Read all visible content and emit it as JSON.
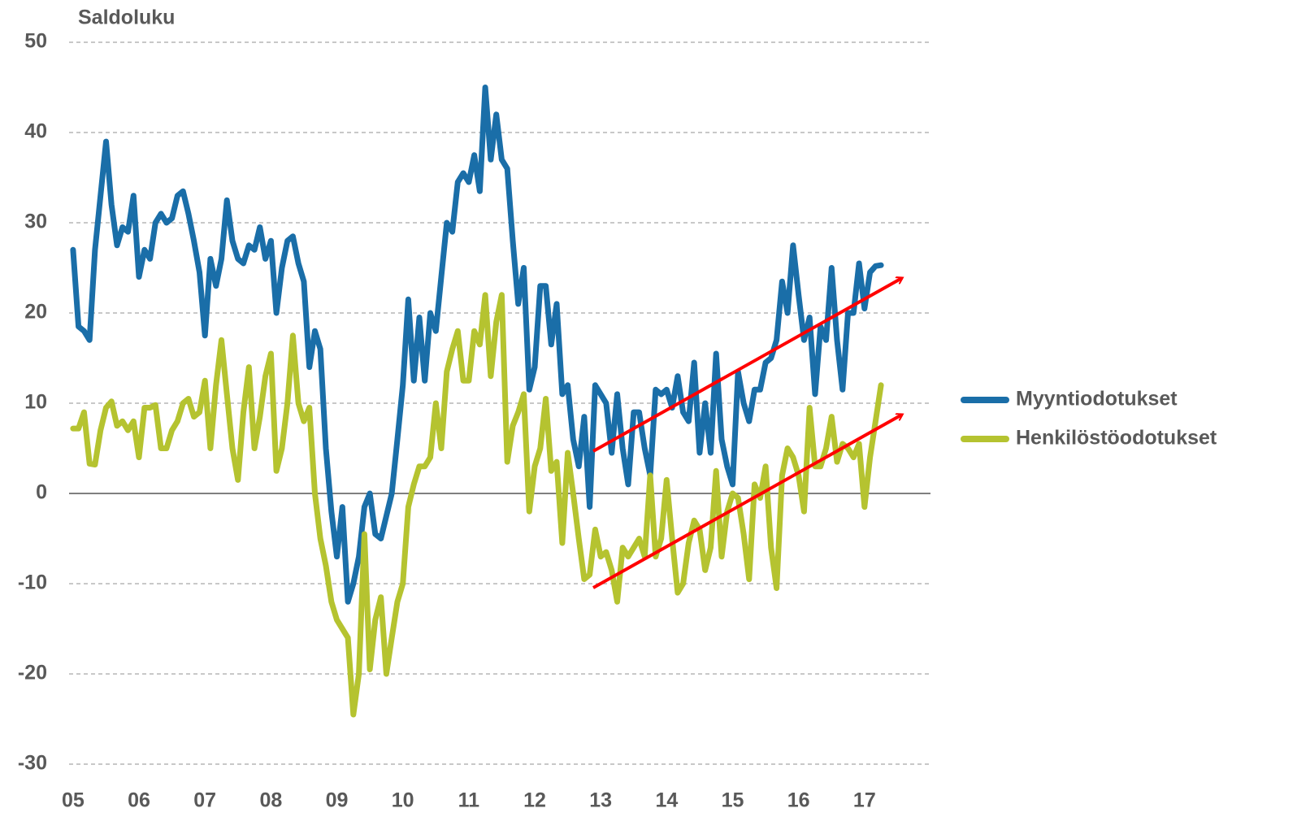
{
  "chart_data": {
    "type": "line",
    "title": "Saldoluku",
    "x": [
      2005,
      2005.083,
      2005.167,
      2005.25,
      2005.333,
      2005.417,
      2005.5,
      2005.583,
      2005.667,
      2005.75,
      2005.833,
      2005.917,
      2006,
      2006.083,
      2006.167,
      2006.25,
      2006.333,
      2006.417,
      2006.5,
      2006.583,
      2006.667,
      2006.75,
      2006.833,
      2006.917,
      2007,
      2007.083,
      2007.167,
      2007.25,
      2007.333,
      2007.417,
      2007.5,
      2007.583,
      2007.667,
      2007.75,
      2007.833,
      2007.917,
      2008,
      2008.083,
      2008.167,
      2008.25,
      2008.333,
      2008.417,
      2008.5,
      2008.583,
      2008.667,
      2008.75,
      2008.833,
      2008.917,
      2009,
      2009.083,
      2009.167,
      2009.25,
      2009.333,
      2009.417,
      2009.5,
      2009.583,
      2009.667,
      2009.75,
      2009.833,
      2009.917,
      2010,
      2010.083,
      2010.167,
      2010.25,
      2010.333,
      2010.417,
      2010.5,
      2010.583,
      2010.667,
      2010.75,
      2010.833,
      2010.917,
      2011,
      2011.083,
      2011.167,
      2011.25,
      2011.333,
      2011.417,
      2011.5,
      2011.583,
      2011.667,
      2011.75,
      2011.833,
      2011.917,
      2012,
      2012.083,
      2012.167,
      2012.25,
      2012.333,
      2012.417,
      2012.5,
      2012.583,
      2012.667,
      2012.75,
      2012.833,
      2012.917,
      2013,
      2013.083,
      2013.167,
      2013.25,
      2013.333,
      2013.417,
      2013.5,
      2013.583,
      2013.667,
      2013.75,
      2013.833,
      2013.917,
      2014,
      2014.083,
      2014.167,
      2014.25,
      2014.333,
      2014.417,
      2014.5,
      2014.583,
      2014.667,
      2014.75,
      2014.833,
      2014.917,
      2015,
      2015.083,
      2015.167,
      2015.25,
      2015.333,
      2015.417,
      2015.5,
      2015.583,
      2015.667,
      2015.75,
      2015.833,
      2015.917,
      2016,
      2016.083,
      2016.167,
      2016.25,
      2016.333,
      2016.417,
      2016.5,
      2016.583,
      2016.667,
      2016.75,
      2016.833,
      2016.917,
      2017,
      2017.083,
      2017.167,
      2017.25
    ],
    "series": [
      {
        "name": "Myyntiodotukset",
        "color": "#1a6ea8",
        "values": [
          27,
          18.5,
          18,
          17,
          27,
          33,
          39,
          32,
          27.5,
          29.5,
          29,
          33,
          24,
          27,
          26,
          30,
          31,
          30,
          30.5,
          33,
          33.5,
          31,
          28,
          24.5,
          17.5,
          26,
          23,
          26,
          32.5,
          28,
          26,
          25.5,
          27.5,
          27,
          29.5,
          26,
          28,
          20,
          25,
          28,
          28.5,
          25.5,
          23.5,
          14,
          18,
          16,
          5,
          -2,
          -7,
          -1.5,
          -12,
          -10,
          -7,
          -1.5,
          0,
          -4.5,
          -5,
          -2.5,
          0,
          6,
          12,
          21.5,
          12.5,
          19.5,
          12.5,
          20,
          18,
          24,
          30,
          29,
          34.5,
          35.5,
          34.5,
          37.5,
          33.5,
          45,
          37,
          42,
          37,
          36,
          28,
          21,
          25,
          11.5,
          14,
          23,
          23,
          16.5,
          21,
          11,
          12,
          6,
          3,
          8.5,
          -1.5,
          12,
          11,
          10,
          4.5,
          11,
          5,
          1,
          9,
          9,
          5,
          2,
          11.5,
          11,
          11.5,
          9.5,
          13,
          9,
          8,
          14.5,
          4.5,
          10,
          4.5,
          15.5,
          6,
          3,
          1,
          13.5,
          10,
          8,
          11.5,
          11.5,
          14.5,
          15,
          17,
          23.5,
          20,
          27.5,
          22,
          17,
          19.5,
          11,
          18.5,
          17,
          25,
          17,
          11.5,
          20,
          20,
          25.5,
          20.5,
          24.5,
          25.2,
          25.3
        ]
      },
      {
        "name": "Henkilöstöodotukset",
        "color": "#b5c330",
        "values": [
          7.2,
          7.2,
          9,
          3.3,
          3.2,
          7,
          9.5,
          10.2,
          7.5,
          8,
          7,
          8,
          4,
          9.5,
          9.5,
          9.8,
          5,
          5,
          7,
          8,
          10,
          10.5,
          8.5,
          9,
          12.5,
          5,
          12,
          17,
          11,
          5,
          1.5,
          9,
          14,
          5,
          8.5,
          13,
          15.5,
          2.5,
          5,
          10,
          17.5,
          10,
          8,
          9.5,
          0,
          -5,
          -8,
          -12,
          -14,
          -15,
          -16,
          -24.5,
          -20,
          -4.5,
          -19.5,
          -14,
          -11.5,
          -20,
          -16,
          -12,
          -10,
          -1.5,
          1,
          3,
          3,
          4,
          10,
          5,
          13.5,
          16,
          18,
          12.5,
          12.5,
          18,
          16.5,
          22,
          13,
          19,
          22,
          3.5,
          7.5,
          9,
          11,
          -2,
          3,
          5,
          10.5,
          2.5,
          3.5,
          -5.5,
          4.5,
          0,
          -5,
          -9.5,
          -9,
          -4,
          -7,
          -6.5,
          -8.5,
          -12,
          -6,
          -7,
          -6,
          -5,
          -7,
          2,
          -7,
          -5,
          1.5,
          -5,
          -11,
          -10,
          -5.5,
          -3,
          -4,
          -8.5,
          -6,
          2.5,
          -7,
          -2,
          0,
          -0.5,
          -4.5,
          -9.5,
          1,
          -0.5,
          3,
          -6,
          -10.5,
          2,
          5,
          4,
          2,
          -2,
          9.5,
          3,
          3,
          5,
          8.5,
          3.5,
          5.5,
          5,
          4,
          5.5,
          -1.5,
          4,
          8,
          12
        ]
      }
    ],
    "xlim": [
      2004.94,
      2018.0
    ],
    "xticks": [
      {
        "value": 2005,
        "label": "05"
      },
      {
        "value": 2006,
        "label": "06"
      },
      {
        "value": 2007,
        "label": "07"
      },
      {
        "value": 2008,
        "label": "08"
      },
      {
        "value": 2009,
        "label": "09"
      },
      {
        "value": 2010,
        "label": "10"
      },
      {
        "value": 2011,
        "label": "11"
      },
      {
        "value": 2012,
        "label": "12"
      },
      {
        "value": 2013,
        "label": "13"
      },
      {
        "value": 2014,
        "label": "14"
      },
      {
        "value": 2015,
        "label": "15"
      },
      {
        "value": 2016,
        "label": "16"
      },
      {
        "value": 2017,
        "label": "17"
      }
    ],
    "ylim": [
      -30,
      50
    ],
    "yticks": [
      -30,
      -20,
      -10,
      0,
      10,
      20,
      30,
      40,
      50
    ],
    "grid": true,
    "legend": "right"
  }
}
